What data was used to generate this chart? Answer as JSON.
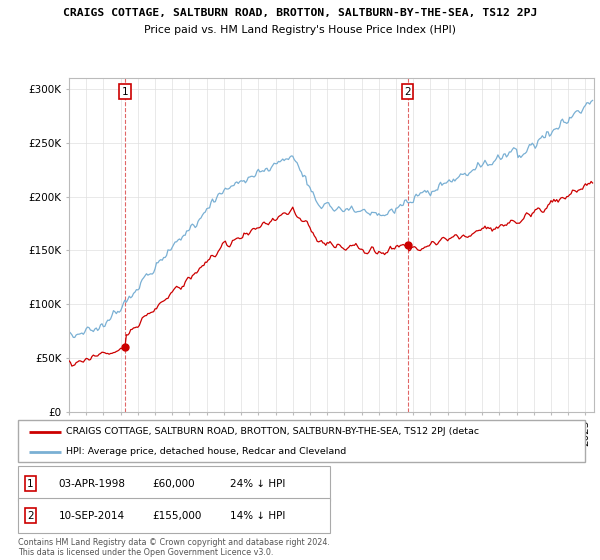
{
  "title": "CRAIGS COTTAGE, SALTBURN ROAD, BROTTON, SALTBURN-BY-THE-SEA, TS12 2PJ",
  "subtitle": "Price paid vs. HM Land Registry's House Price Index (HPI)",
  "legend_label_red": "CRAIGS COTTAGE, SALTBURN ROAD, BROTTON, SALTBURN-BY-THE-SEA, TS12 2PJ (detac",
  "legend_label_blue": "HPI: Average price, detached house, Redcar and Cleveland",
  "footer": "Contains HM Land Registry data © Crown copyright and database right 2024.\nThis data is licensed under the Open Government Licence v3.0.",
  "t1_date": "03-APR-1998",
  "t1_price": "£60,000",
  "t1_hpi": "24% ↓ HPI",
  "t2_date": "10-SEP-2014",
  "t2_price": "£155,000",
  "t2_hpi": "14% ↓ HPI",
  "red_color": "#cc0000",
  "blue_color": "#7ab0d4",
  "vline_color": "#cc0000",
  "grid_color": "#e0e0e0",
  "ylim": [
    0,
    310000
  ],
  "yticks": [
    0,
    50000,
    100000,
    150000,
    200000,
    250000,
    300000
  ],
  "xlim_start": 1995.0,
  "xlim_end": 2025.5,
  "t1_x": 1998.25,
  "t1_y": 60000,
  "t2_x": 2014.67,
  "t2_y": 155000
}
